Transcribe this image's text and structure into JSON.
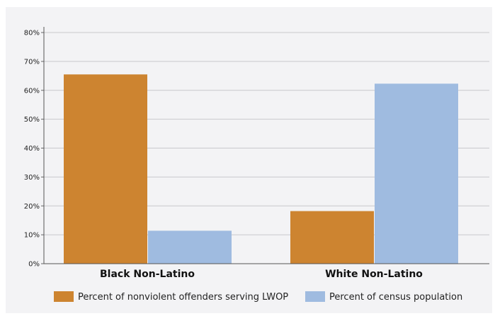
{
  "chart_data": {
    "type": "bar",
    "categories": [
      "Black Non-Latino",
      "White Non-Latino"
    ],
    "series": [
      {
        "name": "Percent of nonviolent offenders serving LWOP",
        "color": "#cd8430",
        "values": [
          65.5,
          18.2
        ]
      },
      {
        "name": "Percent of census population",
        "color": "#9fbbe0",
        "values": [
          11.4,
          62.3
        ]
      }
    ],
    "ylim": [
      0,
      80
    ],
    "yticks": [
      0,
      10,
      20,
      30,
      40,
      50,
      60,
      70,
      80
    ],
    "ytick_labels": [
      "0%",
      "10%",
      "20%",
      "30%",
      "40%",
      "50%",
      "60%",
      "70%",
      "80%"
    ],
    "title": "",
    "xlabel": "",
    "ylabel": "",
    "grid": true,
    "legend_position": "bottom",
    "background_color": "#f3f3f5",
    "gridline_color": "#c8c8cc"
  }
}
